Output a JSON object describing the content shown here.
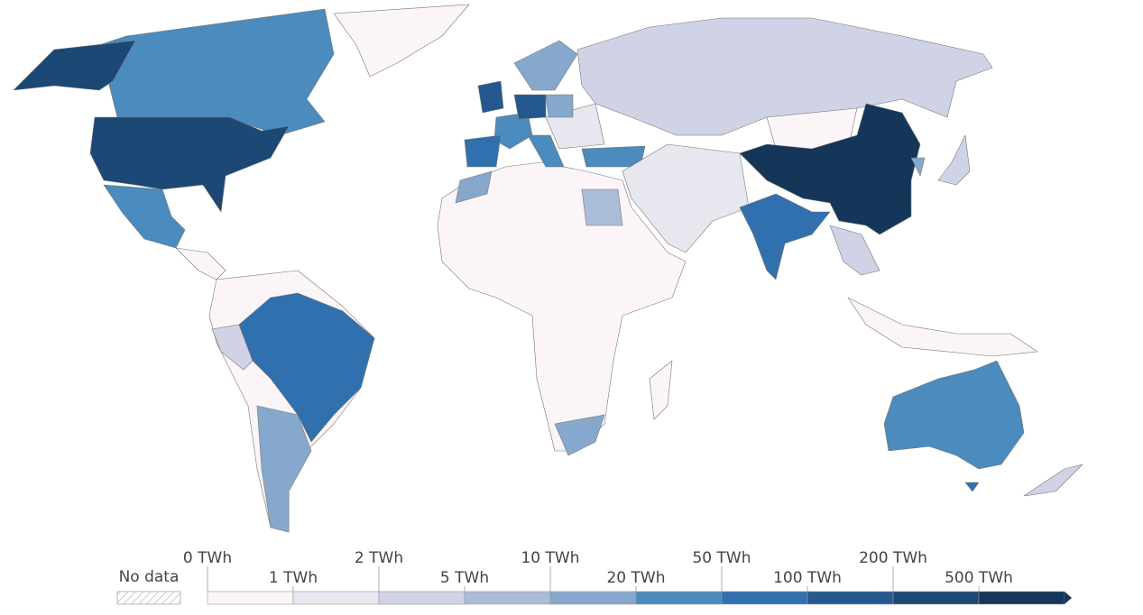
{
  "legend": {
    "no_data": "No data",
    "ticks": [
      "0 TWh",
      "1 TWh",
      "2 TWh",
      "5 TWh",
      "10 TWh",
      "20 TWh",
      "50 TWh",
      "100 TWh",
      "200 TWh",
      "500 TWh"
    ],
    "colors": [
      "#fbf5f8",
      "#e7e7f0",
      "#d0d3e5",
      "#abbcd8",
      "#86a8cd",
      "#4b8bbd",
      "#3070ae",
      "#24588f",
      "#1b4874",
      "#143659"
    ]
  }
}
